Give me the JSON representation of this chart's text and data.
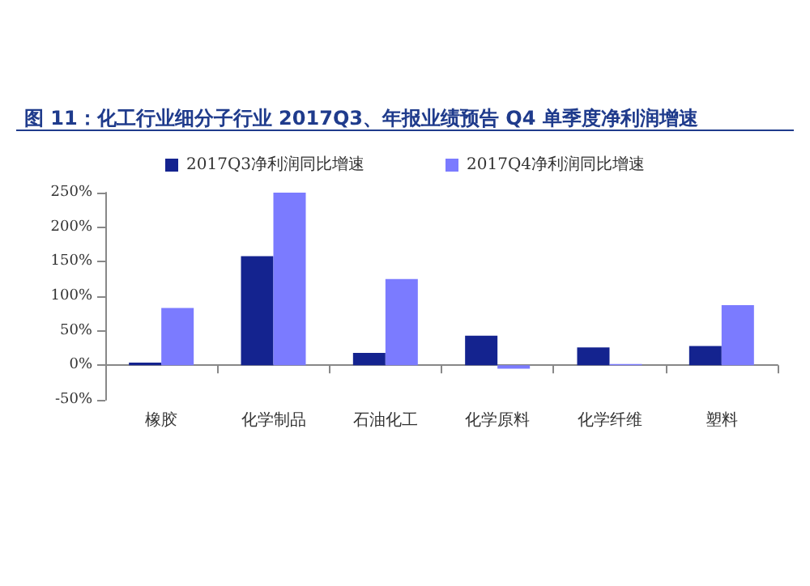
{
  "chart_data": {
    "type": "bar",
    "title": "图 11：化工行业细分子行业 2017Q3、年报业绩预告 Q4 单季度净利润增速",
    "categories": [
      "橡胶",
      "化学制品",
      "石油化工",
      "化学原料",
      "化学纤维",
      "塑料"
    ],
    "series": [
      {
        "name": "2017Q3净利润同比增速",
        "color": "#14238f",
        "values": [
          4,
          158,
          18,
          43,
          26,
          28
        ]
      },
      {
        "name": "2017Q4净利润同比增速",
        "color": "#7b7bff",
        "values": [
          83,
          250,
          125,
          -5,
          2,
          87
        ]
      }
    ],
    "ylim": [
      -50,
      250
    ],
    "yticks": [
      {
        "value": -50,
        "label": "-50%"
      },
      {
        "value": 0,
        "label": "0%"
      },
      {
        "value": 50,
        "label": "50%"
      },
      {
        "value": 100,
        "label": "100%"
      },
      {
        "value": 150,
        "label": "150%"
      },
      {
        "value": 200,
        "label": "200%"
      },
      {
        "value": 250,
        "label": "250%"
      }
    ],
    "legend": "top"
  }
}
